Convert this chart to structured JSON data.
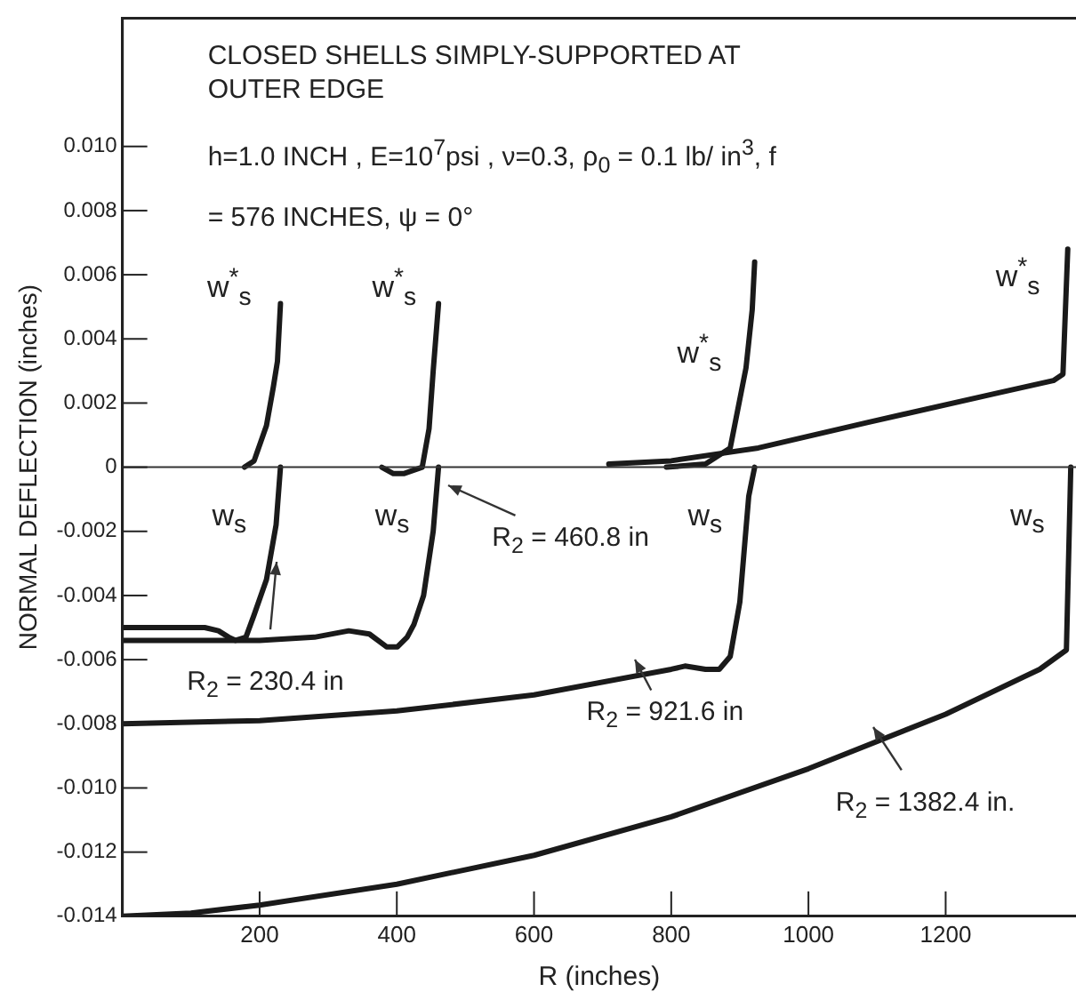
{
  "chart_data": {
    "type": "line",
    "title": "CLOSED SHELLS SIMPLY-SUPPORTED AT OUTER EDGE",
    "subtitle": "h=1.0 INCH , E=10$^{7}$psi , ν=0.3, ρ$_{0}$ = 0.1 lb/ in$^{3}$, f = 576 INCHES, ψ = 0°",
    "xlabel": "R (inches)",
    "ylabel": "NORMAL DEFLECTION (inches)",
    "series": [
      {
        "color": "#1a1a1a",
        "x": [
          0,
          60,
          120,
          140,
          155,
          165,
          180,
          192,
          210,
          224,
          230.4
        ],
        "values": [
          -0.005,
          -0.005,
          -0.005,
          -0.0051,
          -0.0053,
          -0.0054,
          -0.0053,
          -0.0046,
          -0.0035,
          -0.0018,
          0
        ]
      },
      {
        "color": "#1a1a1a",
        "x": [
          178,
          192,
          210,
          220,
          226,
          230.4
        ],
        "values": [
          0,
          0.0002,
          0.0013,
          0.0025,
          0.0033,
          0.0051
        ]
      },
      {
        "color": "#1a1a1a",
        "x": [
          0,
          100,
          200,
          280,
          330,
          360,
          385,
          401,
          415,
          425,
          439,
          453,
          460.8
        ],
        "values": [
          -0.0054,
          -0.0054,
          -0.0054,
          -0.0053,
          -0.0051,
          -0.0052,
          -0.0056,
          -0.0056,
          -0.0053,
          -0.0049,
          -0.004,
          -0.002,
          0
        ]
      },
      {
        "color": "#1a1a1a",
        "x": [
          378,
          395,
          410,
          437,
          447,
          453,
          460.8
        ],
        "values": [
          0,
          -0.0002,
          -0.0002,
          0,
          0.0012,
          0.003,
          0.0051
        ]
      },
      {
        "color": "#1a1a1a",
        "x": [
          0,
          200,
          400,
          600,
          800,
          820,
          850,
          870,
          886,
          900,
          913,
          921.6
        ],
        "values": [
          -0.008,
          -0.0079,
          -0.0076,
          -0.0071,
          -0.0063,
          -0.0062,
          -0.0063,
          -0.0063,
          -0.0059,
          -0.0042,
          -0.0009,
          0
        ]
      },
      {
        "color": "#1a1a1a",
        "x": [
          793,
          850,
          886,
          909,
          918,
          921.6
        ],
        "values": [
          0,
          0.0001,
          0.0006,
          0.0031,
          0.0049,
          0.0064
        ]
      },
      {
        "color": "#1a1a1a",
        "x": [
          0,
          100,
          200,
          400,
          600,
          800,
          1000,
          1200,
          1337,
          1376,
          1382.4
        ],
        "values": [
          -0.014,
          -0.0139,
          -0.01365,
          -0.013,
          -0.0121,
          -0.0109,
          -0.0094,
          -0.0077,
          -0.0063,
          -0.0057,
          0
        ]
      },
      {
        "color": "#1a1a1a",
        "x": [
          709,
          800,
          927,
          1087,
          1273,
          1357,
          1371,
          1378
        ],
        "values": [
          0.0001,
          0.0002,
          0.0006,
          0.0014,
          0.0023,
          0.0027,
          0.0029,
          0.0068
        ]
      }
    ],
    "annotations": [
      "R$_{2}$ = 230.4 in",
      "R$_{2}$ = 460.8 in",
      "R$_{2}$ = 921.6 in",
      "R$_{2}$ = 1382.4 in.",
      "w$^{*}$$_{s}$",
      "w$^{*}$$_{s}$",
      "w$^{*}$$_{s}$",
      "w$^{*}$$_{s}$",
      "w$_{s}$",
      "w$_{s}$",
      "w$_{s}$",
      "w$_{s}$"
    ],
    "ref_lines": [
      {
        "axis": "y",
        "value": 0,
        "color": "#333333"
      }
    ],
    "xlim": [
      0,
      1390
    ],
    "xticks": [
      200,
      400,
      600,
      800,
      1000,
      1200
    ],
    "ylim": [
      -0.014,
      0.014
    ],
    "yticks": [
      {
        "value": -0.014,
        "label": "-0.014"
      },
      {
        "value": -0.012,
        "label": "-0.012"
      },
      {
        "value": -0.01,
        "label": "-0.010"
      },
      {
        "value": -0.008,
        "label": "-0.008"
      },
      {
        "value": -0.006,
        "label": "-0.006"
      },
      {
        "value": -0.004,
        "label": "-0.004"
      },
      {
        "value": -0.002,
        "label": "-0.002"
      },
      {
        "value": 0,
        "label": "0"
      },
      {
        "value": 0.002,
        "label": "0.002"
      },
      {
        "value": 0.004,
        "label": "0.004"
      },
      {
        "value": 0.006,
        "label": "0.006"
      },
      {
        "value": 0.008,
        "label": "0.008"
      },
      {
        "value": 0.01,
        "label": "0.010"
      }
    ],
    "grid": false,
    "legend": false,
    "marker": "none",
    "line_style": "solid"
  }
}
